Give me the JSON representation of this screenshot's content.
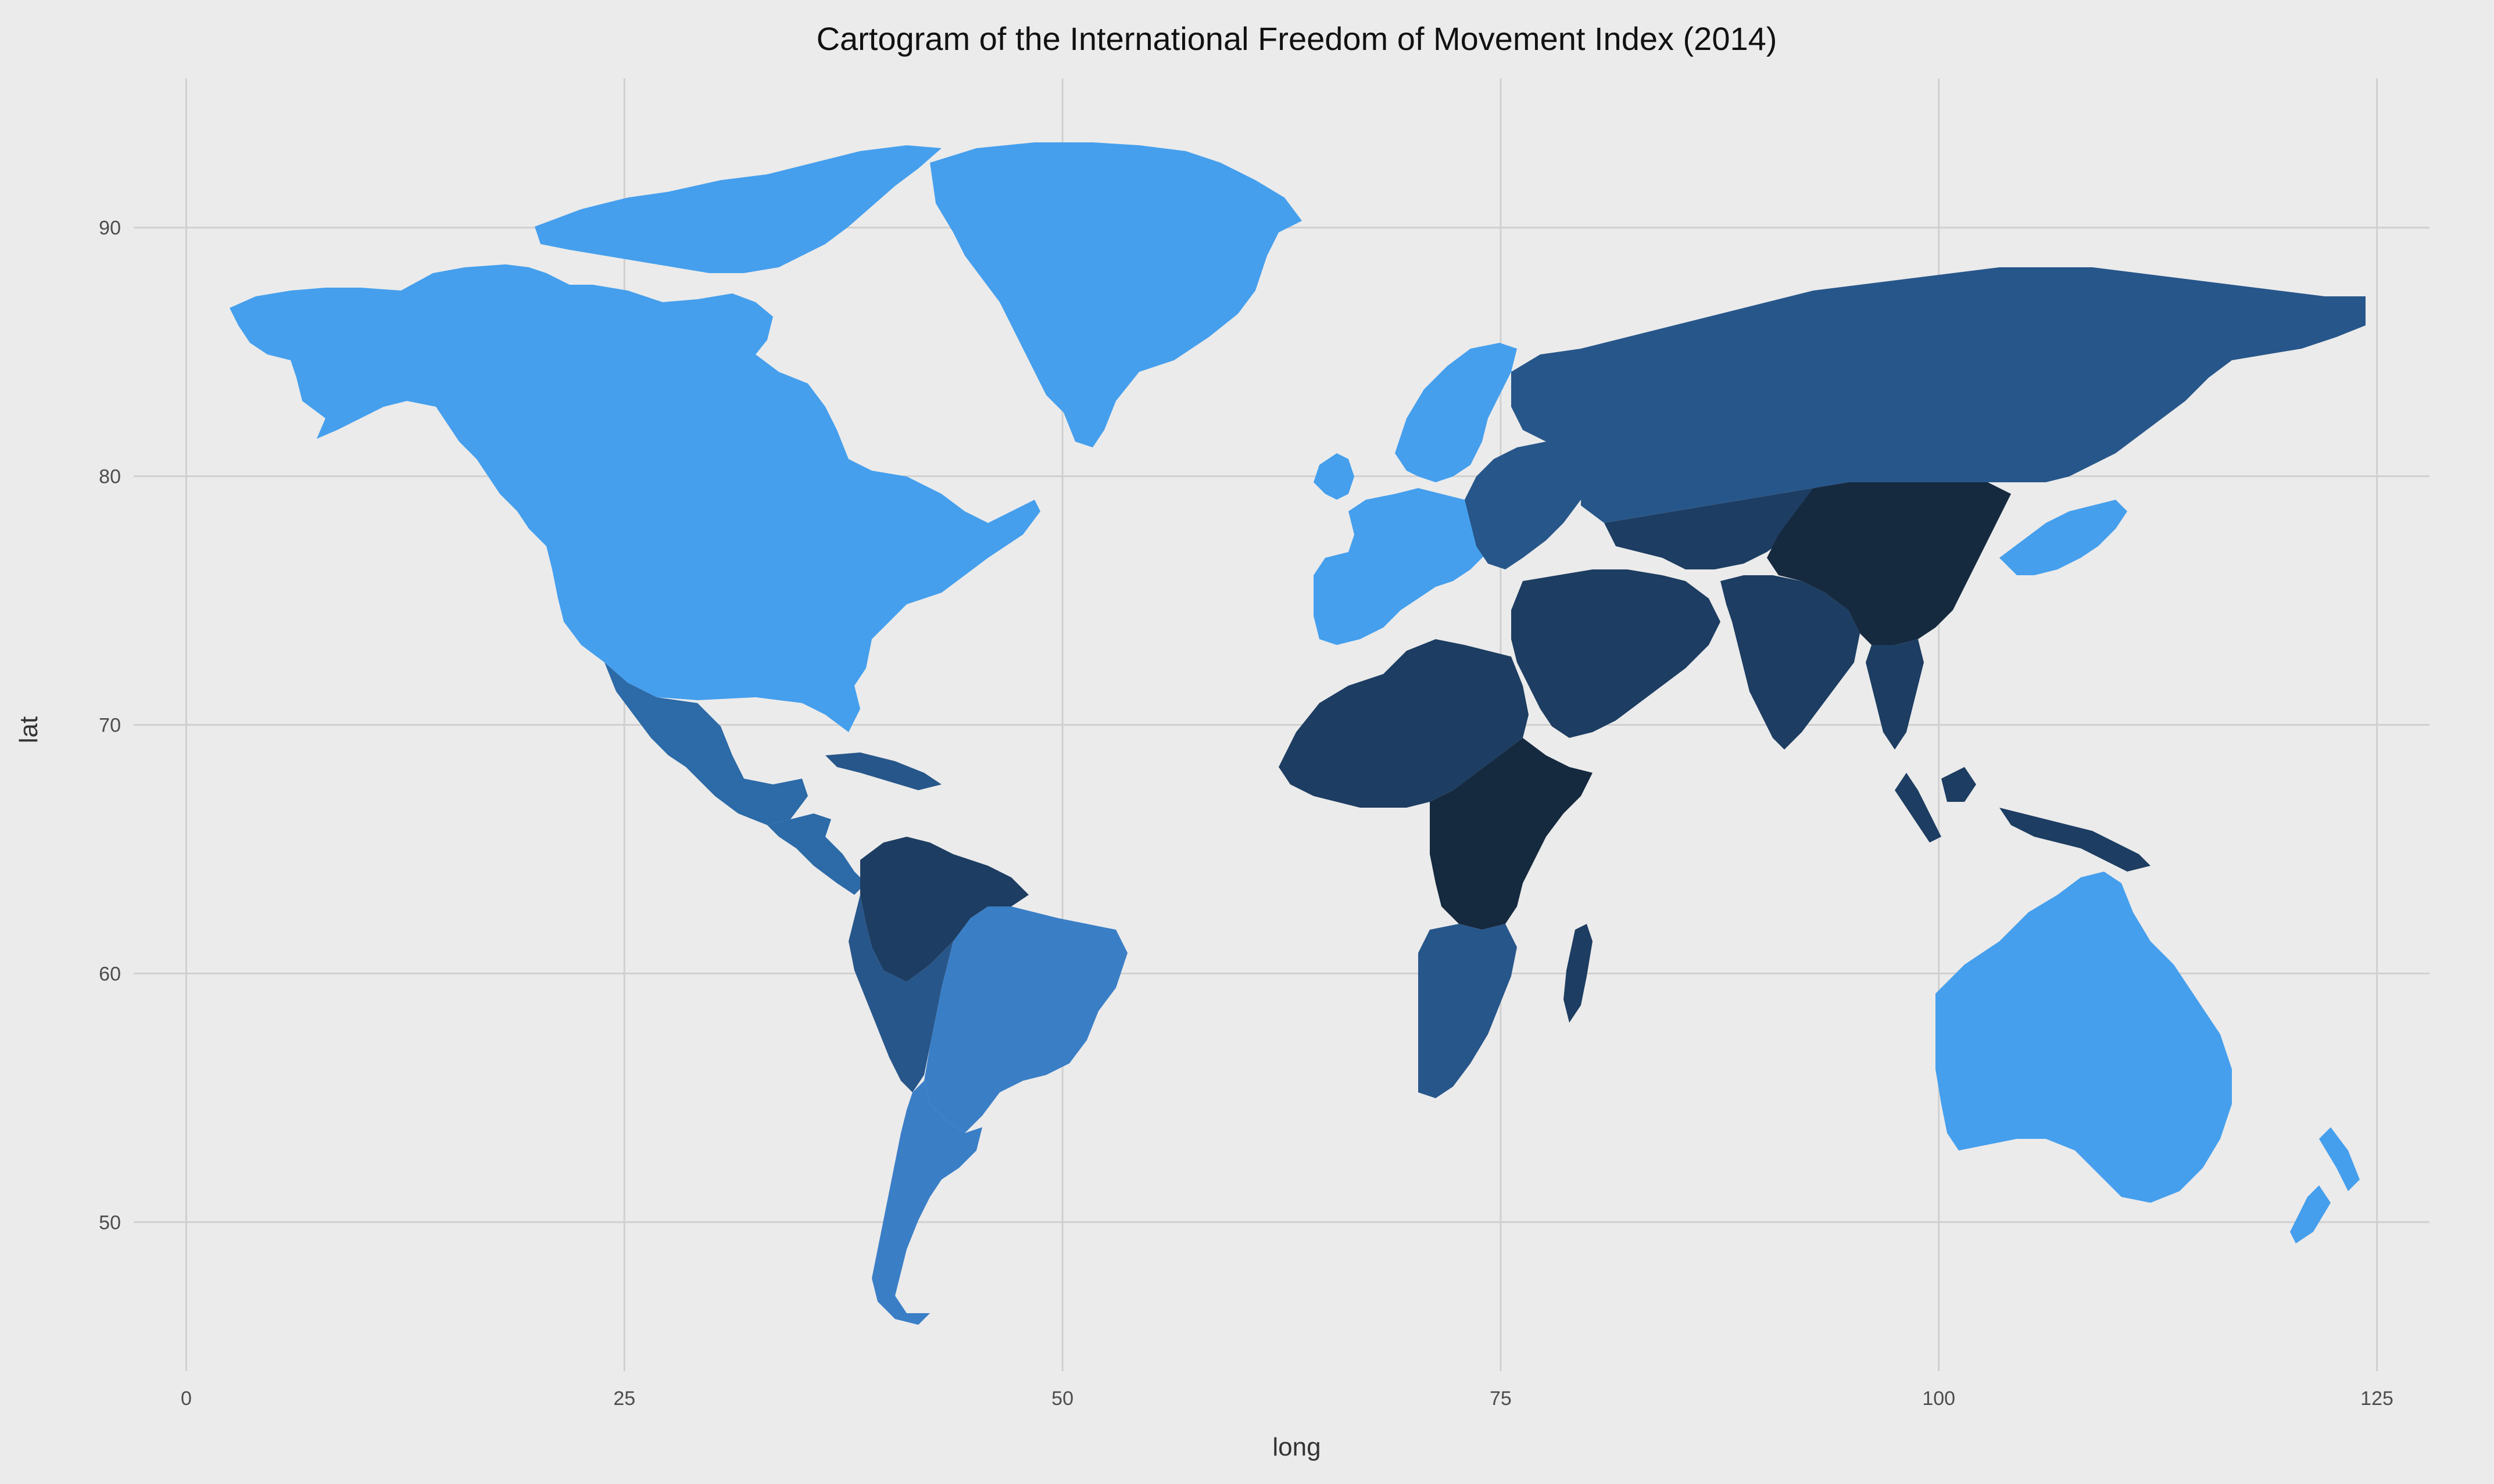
{
  "title": "Cartogram of the International Freedom of Movement Index (2014)",
  "x_axis": {
    "label": "long",
    "ticks": [
      0,
      25,
      50,
      75,
      100,
      125
    ],
    "range": [
      -3,
      128
    ]
  },
  "y_axis": {
    "label": "lat",
    "ticks": [
      50,
      60,
      70,
      80,
      90
    ],
    "range": [
      44,
      96
    ]
  },
  "grid": true,
  "legend": "none",
  "colors": {
    "background": "#ebebeb",
    "grid": "#d0d0d0",
    "level_free": "#459fed",
    "level_upper_mid": "#3a7ec6",
    "level_mid": "#2c6aa8",
    "level_lower_mid": "#27568a",
    "level_low": "#1d3d62",
    "level_lowest": "#15293f"
  },
  "chart_data": {
    "type": "map",
    "title": "Cartogram of the International Freedom of Movement Index (2014)",
    "xlabel": "long",
    "ylabel": "lat",
    "xlim": [
      -3,
      128
    ],
    "ylim": [
      44,
      96
    ],
    "regions": [
      {
        "name": "North America",
        "level": "level_free"
      },
      {
        "name": "Greenland",
        "level": "level_free"
      },
      {
        "name": "Alaska",
        "level": "level_free"
      },
      {
        "name": "Mexico",
        "level": "level_mid"
      },
      {
        "name": "Central America",
        "level": "level_mid"
      },
      {
        "name": "Caribbean",
        "level": "level_lower_mid"
      },
      {
        "name": "Brazil",
        "level": "level_upper_mid"
      },
      {
        "name": "Colombia",
        "level": "level_low"
      },
      {
        "name": "Andes",
        "level": "level_lower_mid"
      },
      {
        "name": "Southern Cone",
        "level": "level_upper_mid"
      },
      {
        "name": "Western Europe",
        "level": "level_free"
      },
      {
        "name": "Scandinavia",
        "level": "level_free"
      },
      {
        "name": "Eastern Europe",
        "level": "level_lower_mid"
      },
      {
        "name": "Russia",
        "level": "level_lower_mid"
      },
      {
        "name": "Central Asia",
        "level": "level_low"
      },
      {
        "name": "Middle East",
        "level": "level_low"
      },
      {
        "name": "South Asia",
        "level": "level_low"
      },
      {
        "name": "China",
        "level": "level_lowest"
      },
      {
        "name": "Southeast Asia",
        "level": "level_low"
      },
      {
        "name": "Japan and Korea",
        "level": "level_free"
      },
      {
        "name": "North and West Africa",
        "level": "level_low"
      },
      {
        "name": "East and Central Africa",
        "level": "level_lowest"
      },
      {
        "name": "Southern Africa",
        "level": "level_lower_mid"
      },
      {
        "name": "Madagascar",
        "level": "level_low"
      },
      {
        "name": "Indonesia",
        "level": "level_low"
      },
      {
        "name": "Australia",
        "level": "level_free"
      },
      {
        "name": "New Zealand",
        "level": "level_free"
      }
    ]
  }
}
